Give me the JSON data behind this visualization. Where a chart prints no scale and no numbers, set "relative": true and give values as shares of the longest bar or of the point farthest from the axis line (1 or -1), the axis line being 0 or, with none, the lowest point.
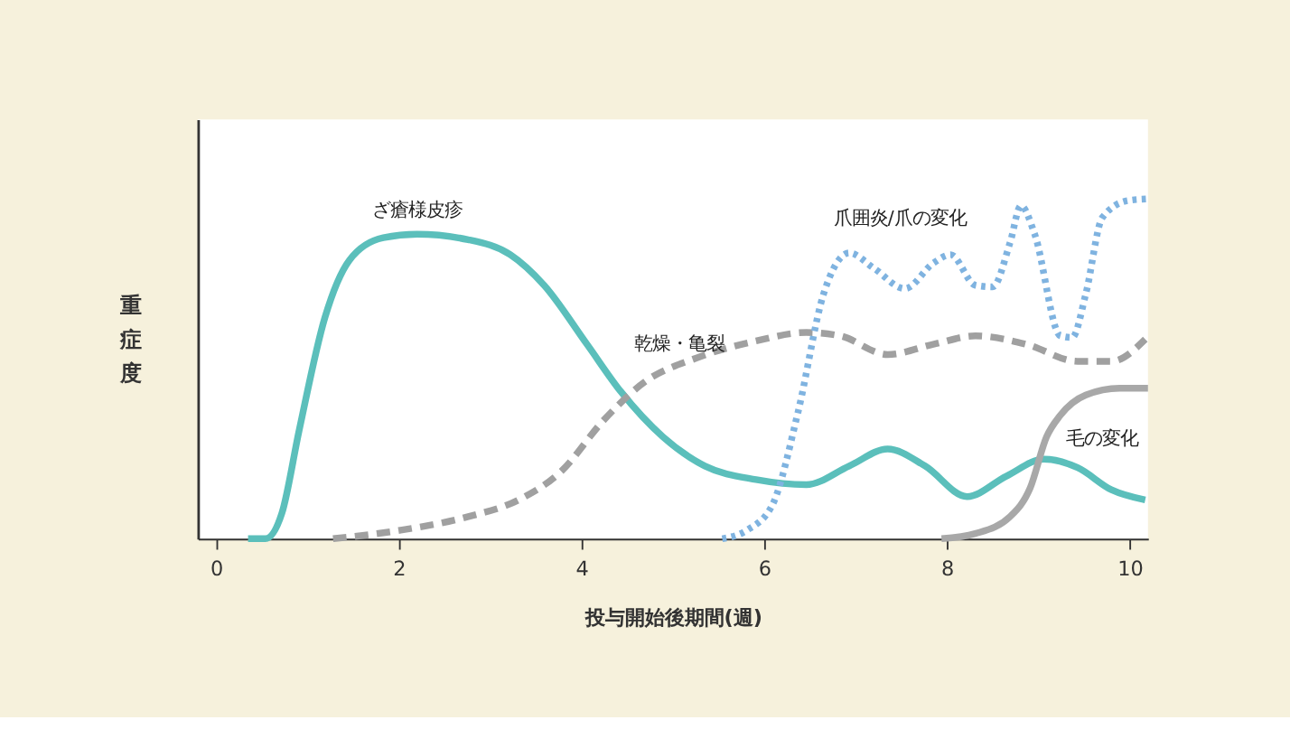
{
  "chart_data": {
    "type": "line",
    "relative": true,
    "xlabel": "投与開始後期間(週)",
    "ylabel": "重症度",
    "xlim": [
      -0.2,
      10.2
    ],
    "xticks": [
      0,
      2,
      4,
      6,
      8,
      10
    ],
    "grid": false,
    "legend": false,
    "marker": "none",
    "series": [
      {
        "name": "ざ瘡様皮疹",
        "color": "#5bbfbb",
        "line_style": "solid",
        "x": [
          0.35,
          0.54,
          0.72,
          0.91,
          1.19,
          1.46,
          1.83,
          2.2,
          2.76,
          3.22,
          3.59,
          4.06,
          4.43,
          4.89,
          5.35,
          5.91,
          6.46,
          6.93,
          7.35,
          7.76,
          8.22,
          8.65,
          9.06,
          9.43,
          9.8,
          10.17
        ],
        "values": [
          0,
          0,
          0.075,
          0.32,
          0.65,
          0.82,
          0.886,
          0.896,
          0.88,
          0.836,
          0.746,
          0.572,
          0.433,
          0.3,
          0.214,
          0.174,
          0.159,
          0.214,
          0.264,
          0.214,
          0.124,
          0.184,
          0.234,
          0.209,
          0.144,
          0.114
        ]
      },
      {
        "name": "乾燥・亀裂",
        "color": "#a0a0a0",
        "line_style": "dashed",
        "x": [
          1.28,
          2.02,
          2.76,
          3.31,
          3.78,
          4.24,
          4.7,
          5.26,
          5.91,
          6.46,
          6.83,
          7.35,
          7.85,
          8.31,
          8.87,
          9.43,
          9.8,
          10.17
        ],
        "values": [
          0,
          0.025,
          0.065,
          0.114,
          0.199,
          0.348,
          0.463,
          0.532,
          0.582,
          0.607,
          0.597,
          0.542,
          0.572,
          0.597,
          0.572,
          0.522,
          0.522,
          0.587
        ]
      },
      {
        "name": "爪囲炎/爪の変化",
        "color": "#7fb3e0",
        "line_style": "dotted",
        "x": [
          5.54,
          5.81,
          6.09,
          6.37,
          6.65,
          6.93,
          7.2,
          7.54,
          7.85,
          8.04,
          8.31,
          8.5,
          8.69,
          8.81,
          8.96,
          9.24,
          9.37,
          9.52,
          9.7,
          9.98,
          10.2
        ],
        "values": [
          0,
          0.025,
          0.1,
          0.373,
          0.721,
          0.841,
          0.796,
          0.736,
          0.811,
          0.836,
          0.746,
          0.741,
          0.871,
          0.98,
          0.896,
          0.597,
          0.592,
          0.721,
          0.945,
          0.995,
          1.0
        ]
      },
      {
        "name": "毛の変化",
        "color": "#a8a8a8",
        "line_style": "solid",
        "x": [
          7.94,
          8.31,
          8.69,
          8.91,
          9.09,
          9.24,
          9.52,
          9.89,
          10.2
        ],
        "values": [
          0,
          0.015,
          0.065,
          0.149,
          0.3,
          0.363,
          0.423,
          0.443,
          0.443
        ]
      }
    ]
  }
}
